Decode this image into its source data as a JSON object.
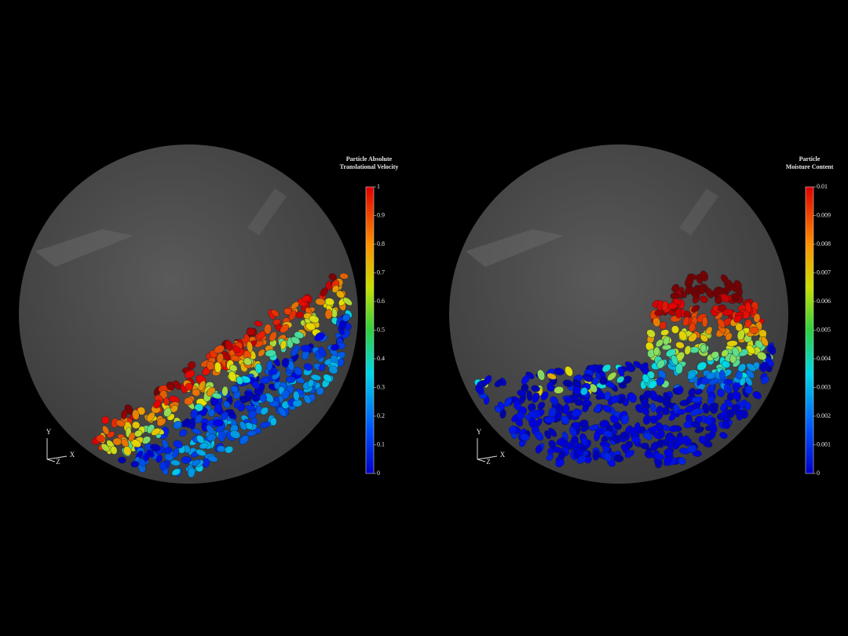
{
  "panels": [
    {
      "colorbar": {
        "title": [
          "Particle Absolute",
          "Translational Velocity"
        ],
        "lim": [
          0,
          1
        ],
        "ticks": [
          0,
          0.1,
          0.2,
          0.3,
          0.4,
          0.5,
          0.6,
          0.7,
          0.8,
          0.9,
          1
        ]
      },
      "axes": {
        "y": "Y",
        "z": "Z",
        "x": "X"
      }
    },
    {
      "colorbar": {
        "title": [
          "Particle",
          "Moisture Content"
        ],
        "lim": [
          0,
          0.01
        ],
        "ticks": [
          0,
          0.001,
          0.002,
          0.003,
          0.004,
          0.005,
          0.006,
          0.007,
          0.008,
          0.009,
          0.01
        ]
      },
      "axes": {
        "y": "Y",
        "z": "Z",
        "x": "X"
      }
    }
  ]
}
